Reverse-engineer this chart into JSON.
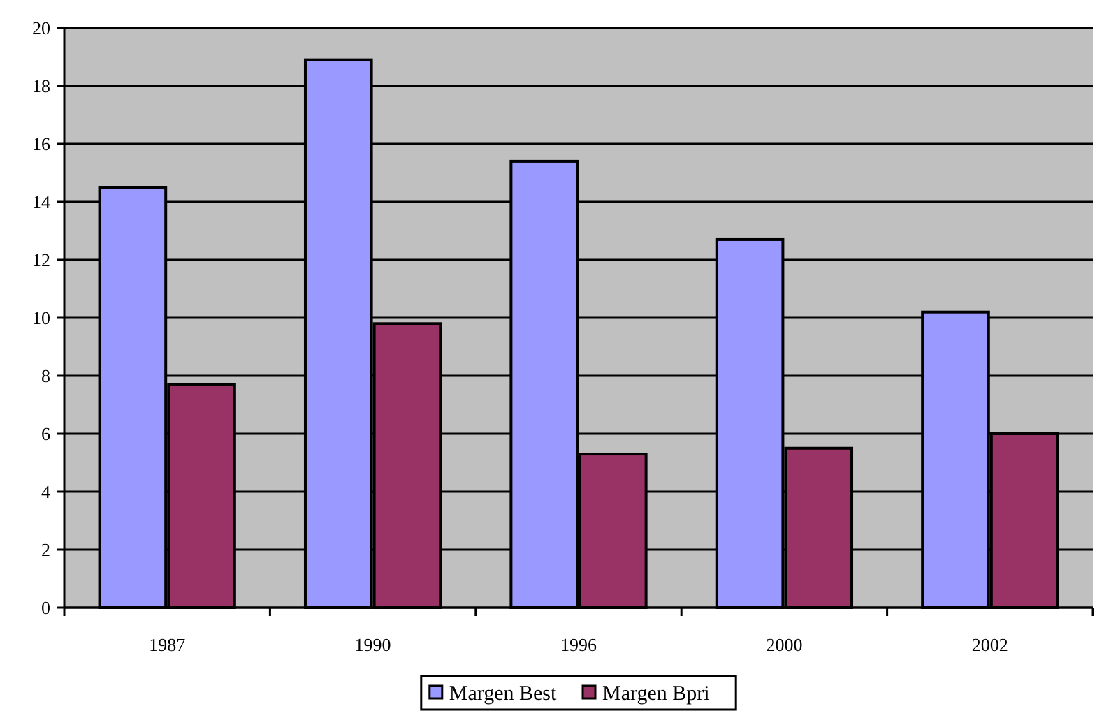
{
  "chart_data": {
    "type": "bar",
    "categories": [
      "1987",
      "1990",
      "1996",
      "2000",
      "2002"
    ],
    "series": [
      {
        "name": "Margen Best",
        "color": "#9999ff",
        "values": [
          14.5,
          18.9,
          15.4,
          12.7,
          10.2
        ]
      },
      {
        "name": "Margen Bpri",
        "color": "#993366",
        "values": [
          7.7,
          9.8,
          5.3,
          5.5,
          6.0
        ]
      }
    ],
    "ylim": [
      0,
      20
    ],
    "yticks": [
      0,
      2,
      4,
      6,
      8,
      10,
      12,
      14,
      16,
      18,
      20
    ],
    "grid": "y",
    "legend": "bottom"
  }
}
